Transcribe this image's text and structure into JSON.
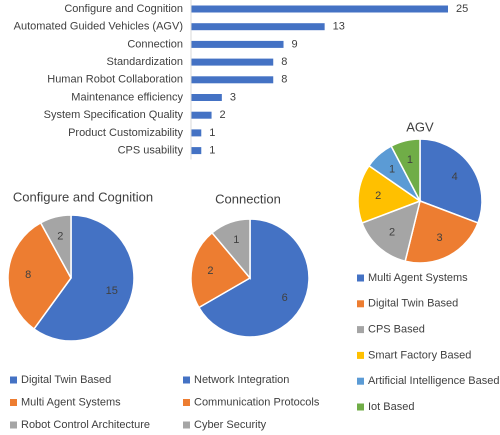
{
  "chart_data": [
    {
      "type": "bar",
      "orientation": "horizontal",
      "color": "#4472c4",
      "categories": [
        "Configure and Cognition",
        "Automated Guided Vehicles (AGV)",
        "Connection",
        "Standardization",
        "Human Robot Collaboration",
        "Maintenance efficiency",
        "System Specification Quality",
        "Product Customizability",
        "CPS usability"
      ],
      "values": [
        25,
        13,
        9,
        8,
        8,
        3,
        2,
        1,
        1
      ]
    },
    {
      "type": "pie",
      "title": "Configure and Cognition",
      "categories": [
        "Digital Twin Based",
        "Multi Agent Systems",
        "Robot Control Architecture"
      ],
      "values": [
        15,
        8,
        2
      ],
      "colors": [
        "#4472c4",
        "#ed7d31",
        "#a5a5a5"
      ]
    },
    {
      "type": "pie",
      "title": "Connection",
      "categories": [
        "Network Integration",
        "Communication Protocols",
        "Cyber Security"
      ],
      "values": [
        6,
        2,
        1
      ],
      "colors": [
        "#4472c4",
        "#ed7d31",
        "#a5a5a5"
      ]
    },
    {
      "type": "pie",
      "title": "AGV",
      "categories": [
        "Multi Agent Systems",
        "Digital Twin Based",
        "CPS Based",
        "Smart Factory Based",
        "Artificial Intelligence Based",
        "Iot Based"
      ],
      "values": [
        4,
        3,
        2,
        2,
        1,
        1
      ],
      "colors": [
        "#4472c4",
        "#ed7d31",
        "#a5a5a5",
        "#ffc000",
        "#5b9bd5",
        "#70ad47"
      ]
    }
  ]
}
